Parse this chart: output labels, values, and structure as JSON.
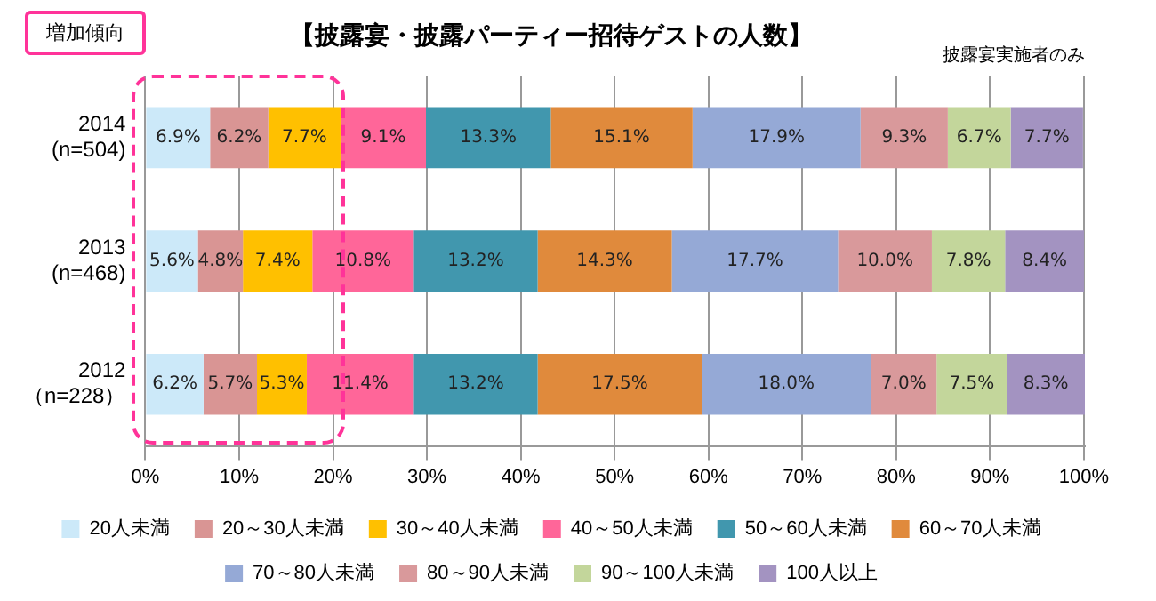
{
  "chart_data": {
    "type": "bar",
    "orientation": "horizontal",
    "stacked": true,
    "title": "【披露宴・披露パーティー招待ゲストの人数】",
    "subtitle": "披露宴実施者のみ",
    "annotations": [
      "増加傾向"
    ],
    "categories": [
      "2014\n(n=504)",
      "2013\n(n=468)",
      "2012\n（n=228）"
    ],
    "series": [
      {
        "name": "20人未満",
        "color": "#cce9f9",
        "values": [
          6.9,
          5.6,
          6.2
        ],
        "value_labels": [
          "6.9%",
          "5.6%",
          "6.2%"
        ]
      },
      {
        "name": "20～30人未満",
        "color": "#d99594",
        "values": [
          6.2,
          4.8,
          5.7
        ],
        "value_labels": [
          "6.2%",
          "4.8%",
          "5.7%"
        ]
      },
      {
        "name": "30～40人未満",
        "color": "#ffc000",
        "values": [
          7.7,
          7.4,
          5.3
        ],
        "value_labels": [
          "7.7%",
          "7.4%",
          "5.3%"
        ]
      },
      {
        "name": "40～50人未満",
        "color": "#ff6699",
        "values": [
          9.1,
          10.8,
          11.4
        ],
        "value_labels": [
          "9.1%",
          "10.8%",
          "11.4%"
        ]
      },
      {
        "name": "50～60人未満",
        "color": "#4197ae",
        "values": [
          13.3,
          13.2,
          13.2
        ],
        "value_labels": [
          "13.3%",
          "13.2%",
          "13.2%"
        ]
      },
      {
        "name": "60～70人未満",
        "color": "#e08a3c",
        "values": [
          15.1,
          14.3,
          17.5
        ],
        "value_labels": [
          "15.1%",
          "14.3%",
          "17.5%"
        ]
      },
      {
        "name": "70～80人未満",
        "color": "#95a9d6",
        "values": [
          17.9,
          17.7,
          18.0
        ],
        "value_labels": [
          "17.9%",
          "17.7%",
          "18.0%"
        ]
      },
      {
        "name": "80～90人未満",
        "color": "#d9999b",
        "values": [
          9.3,
          10.0,
          7.0
        ],
        "value_labels": [
          "9.3%",
          "10.0%",
          "7.0%"
        ]
      },
      {
        "name": "90～100人未満",
        "color": "#c3d69b",
        "values": [
          6.7,
          7.8,
          7.5
        ],
        "value_labels": [
          "6.7%",
          "7.8%",
          "7.5%"
        ]
      },
      {
        "name": "100人以上",
        "color": "#a393c1",
        "values": [
          7.7,
          8.4,
          8.3
        ],
        "value_labels": [
          "7.7%",
          "8.4%",
          "8.3%"
        ]
      }
    ],
    "xlim": [
      0,
      100.1
    ],
    "xticks": [
      {
        "value": 0,
        "label": "0%"
      },
      {
        "value": 10,
        "label": "10%"
      },
      {
        "value": 20,
        "label": "20%"
      },
      {
        "value": 30,
        "label": "30%"
      },
      {
        "value": 40,
        "label": "40%"
      },
      {
        "value": 50,
        "label": "50%"
      },
      {
        "value": 60,
        "label": "60%"
      },
      {
        "value": 70,
        "label": "70%"
      },
      {
        "value": 80,
        "label": "80%"
      },
      {
        "value": 90,
        "label": "90%"
      },
      {
        "value": 100,
        "label": "100%"
      }
    ],
    "grid": "x",
    "legend": "bottom"
  }
}
